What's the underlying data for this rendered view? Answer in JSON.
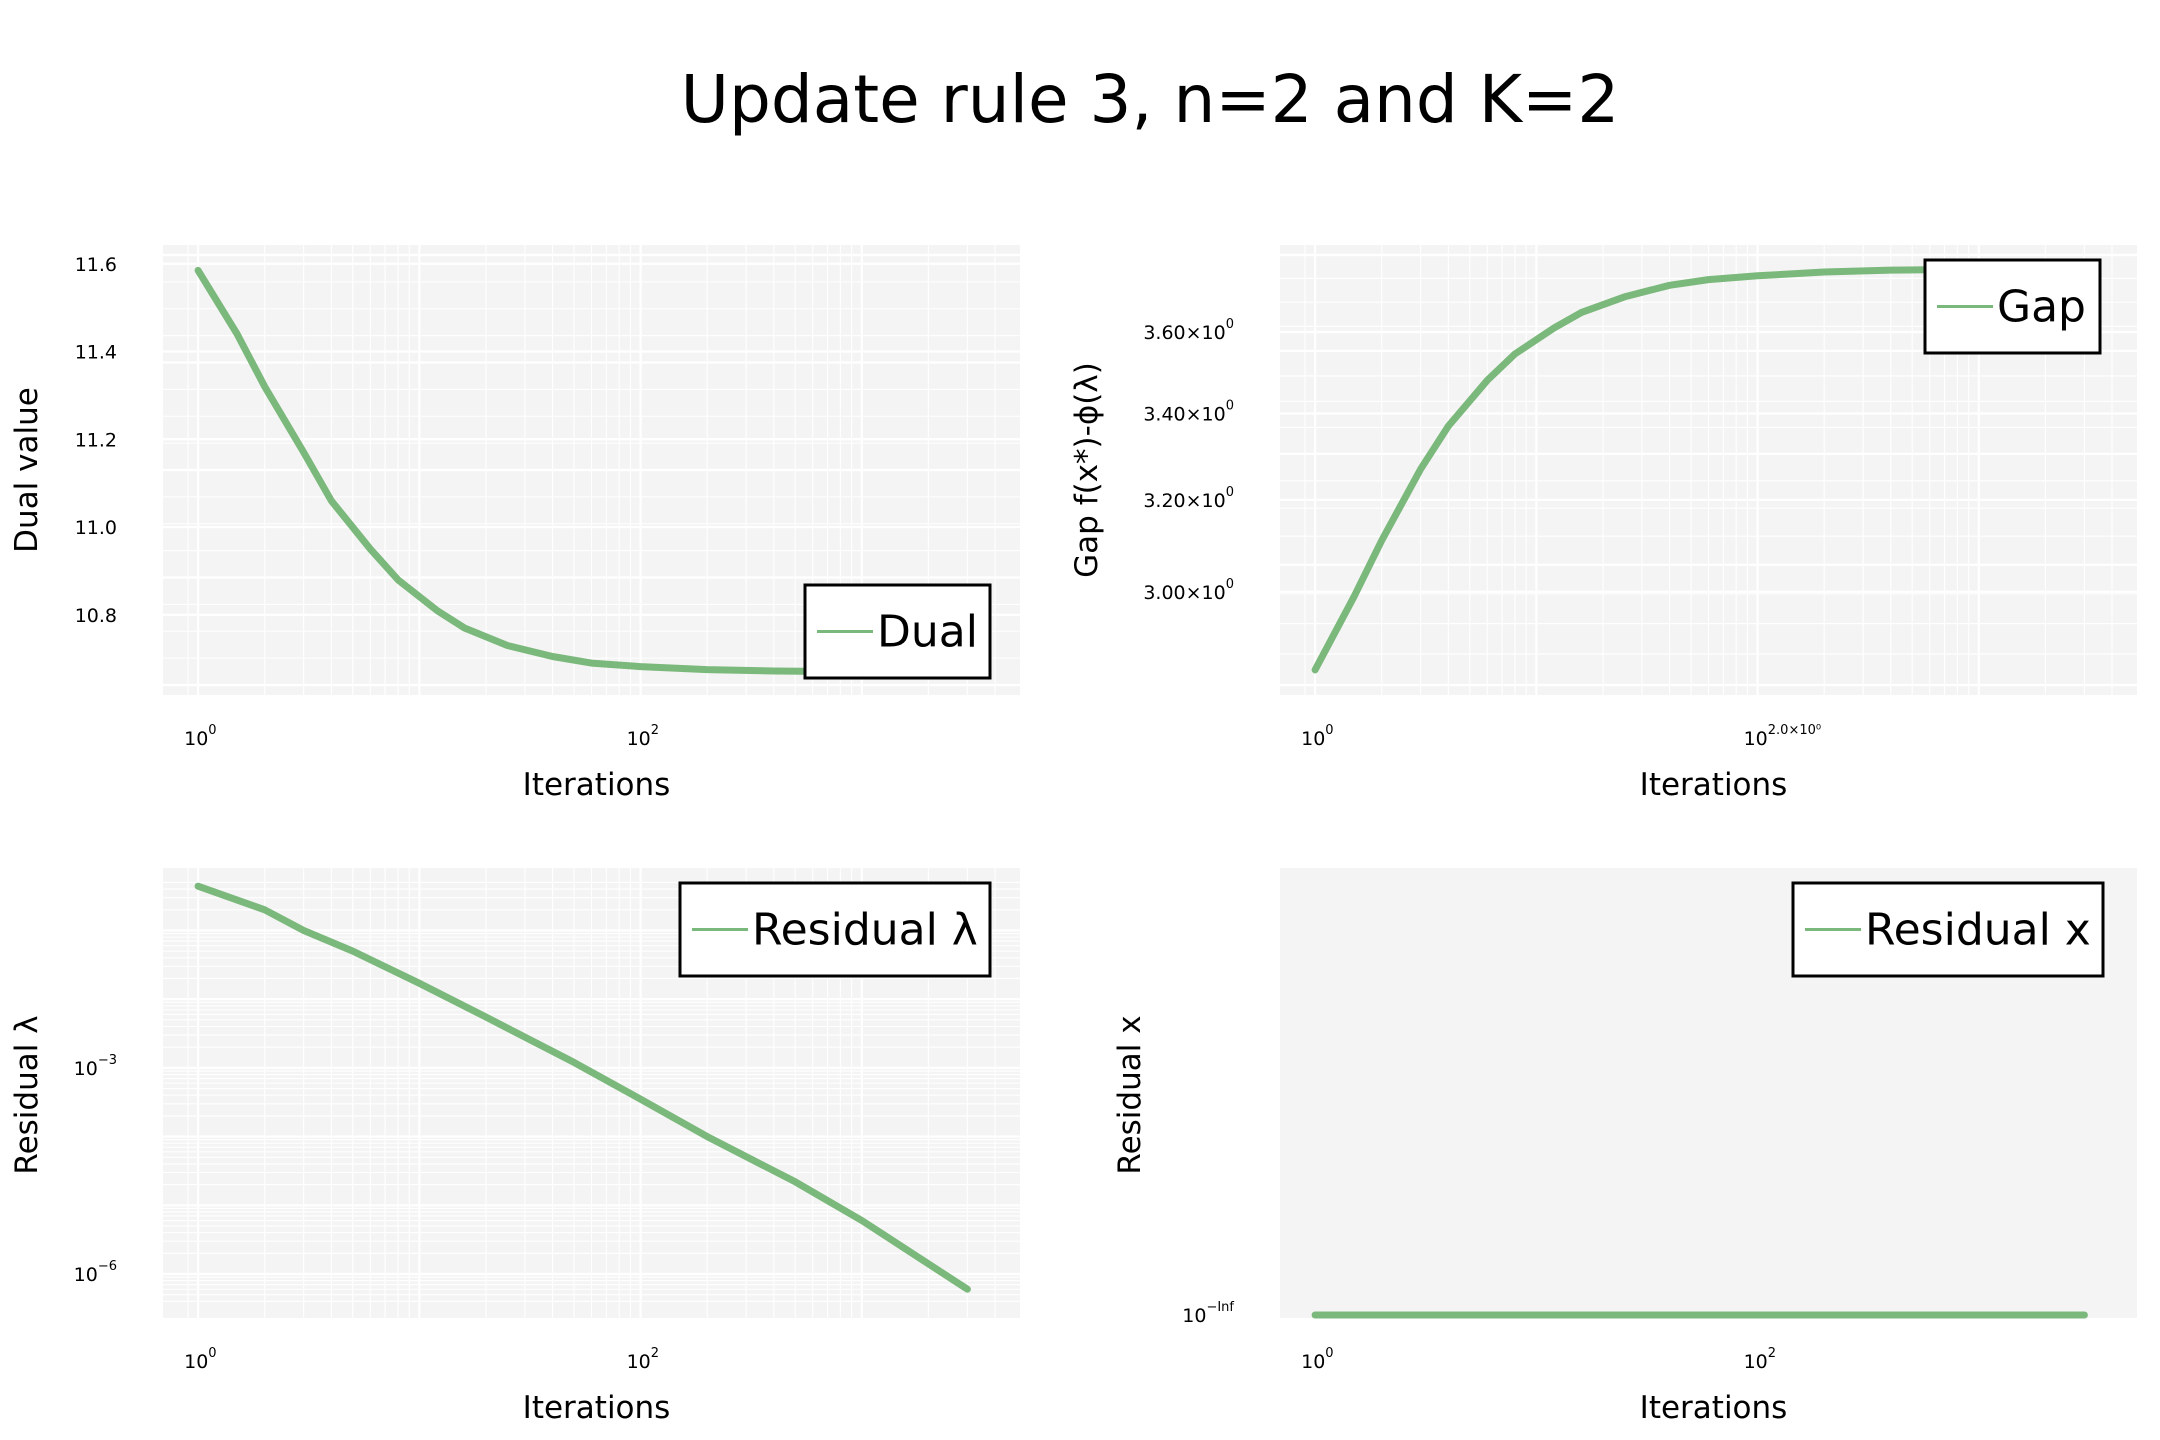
{
  "figure": {
    "title": "Update rule 3, n=2 and K=2",
    "line_color": "#7bb87b"
  },
  "chart_data": [
    {
      "type": "line",
      "title": "",
      "xlabel": "Iterations",
      "ylabel": "Dual value",
      "xscale": "log",
      "yscale": "linear",
      "xlim": [
        0.9,
        4000
      ],
      "ylim": [
        10.64,
        11.62
      ],
      "x_ticks": [
        {
          "value": 1,
          "base": "10",
          "exp": "0"
        },
        {
          "value": 100,
          "base": "10",
          "exp": "2"
        }
      ],
      "y_ticks": [
        {
          "value": 10.8,
          "label": "10.8"
        },
        {
          "value": 11.0,
          "label": "11.0"
        },
        {
          "value": 11.2,
          "label": "11.2"
        },
        {
          "value": 11.4,
          "label": "11.4"
        },
        {
          "value": 11.6,
          "label": "11.6"
        }
      ],
      "legend": "bottom-right",
      "grid": true,
      "series": [
        {
          "name": "Dual",
          "x": [
            1,
            1.5,
            2,
            3,
            4,
            6,
            8,
            12,
            16,
            25,
            40,
            60,
            100,
            200,
            400,
            1000,
            2000,
            3000
          ],
          "y": [
            11.585,
            11.44,
            11.32,
            11.17,
            11.06,
            10.95,
            10.88,
            10.81,
            10.77,
            10.73,
            10.705,
            10.69,
            10.682,
            10.675,
            10.672,
            10.67,
            10.67,
            10.67
          ]
        }
      ]
    },
    {
      "type": "line",
      "title": "",
      "xlabel": "Iterations",
      "ylabel": "Gap f(x*)-ϕ(λ)",
      "xscale": "log",
      "yscale": "log",
      "xlim": [
        0.9,
        4000
      ],
      "ylim": [
        2.81,
        3.8
      ],
      "x_ticks": [
        {
          "value": 1,
          "base": "10",
          "exp": "0"
        },
        {
          "value": 100,
          "base": "10",
          "exp": "2.0×10⁰"
        }
      ],
      "y_ticks": [
        {
          "value": 3.0,
          "label": "3.00×10",
          "exp": "0"
        },
        {
          "value": 3.2,
          "label": "3.20×10",
          "exp": "0"
        },
        {
          "value": 3.4,
          "label": "3.40×10",
          "exp": "0"
        },
        {
          "value": 3.6,
          "label": "3.60×10",
          "exp": "0"
        }
      ],
      "legend": "top-right",
      "grid": true,
      "series": [
        {
          "name": "Gap",
          "x": [
            1,
            1.5,
            2,
            3,
            4,
            6,
            8,
            12,
            16,
            25,
            40,
            60,
            100,
            200,
            400,
            1000,
            2000,
            3000
          ],
          "y": [
            2.84,
            2.99,
            3.11,
            3.27,
            3.37,
            3.48,
            3.545,
            3.61,
            3.65,
            3.69,
            3.72,
            3.735,
            3.745,
            3.755,
            3.76,
            3.762,
            3.763,
            3.763
          ]
        }
      ]
    },
    {
      "type": "line",
      "title": "",
      "xlabel": "Iterations",
      "ylabel": "Residual λ",
      "xscale": "log",
      "yscale": "log",
      "xlim": [
        0.9,
        4000
      ],
      "ylim": [
        3.2e-07,
        0.58
      ],
      "x_ticks": [
        {
          "value": 1,
          "base": "10",
          "exp": "0"
        },
        {
          "value": 100,
          "base": "10",
          "exp": "2"
        }
      ],
      "y_ticks": [
        {
          "value": 1e-06,
          "base": "10",
          "exp": "−6"
        },
        {
          "value": 0.001,
          "base": "10",
          "exp": "−3"
        }
      ],
      "legend": "top-right",
      "grid": true,
      "series": [
        {
          "name": "Residual λ",
          "x": [
            1,
            2,
            3,
            5,
            10,
            20,
            50,
            100,
            200,
            500,
            1000,
            3000
          ],
          "y": [
            0.44,
            0.2,
            0.1,
            0.05,
            0.017,
            0.0055,
            0.0012,
            0.00035,
            0.0001,
            2.2e-05,
            6e-06,
            6e-07
          ]
        }
      ]
    },
    {
      "type": "line",
      "title": "",
      "xlabel": "Iterations",
      "ylabel": "Residual x",
      "xscale": "log",
      "yscale": "log",
      "xlim": [
        0.9,
        4000
      ],
      "x_ticks": [
        {
          "value": 1,
          "base": "10",
          "exp": "0"
        },
        {
          "value": 100,
          "base": "10",
          "exp": "2"
        }
      ],
      "y_ticks": [
        {
          "value": 0,
          "base": "10",
          "exp": "−Inf"
        }
      ],
      "legend": "top-right",
      "grid": false,
      "series": [
        {
          "name": "Residual x",
          "x": [
            1,
            3000
          ],
          "y": [
            0,
            0
          ]
        }
      ]
    }
  ]
}
